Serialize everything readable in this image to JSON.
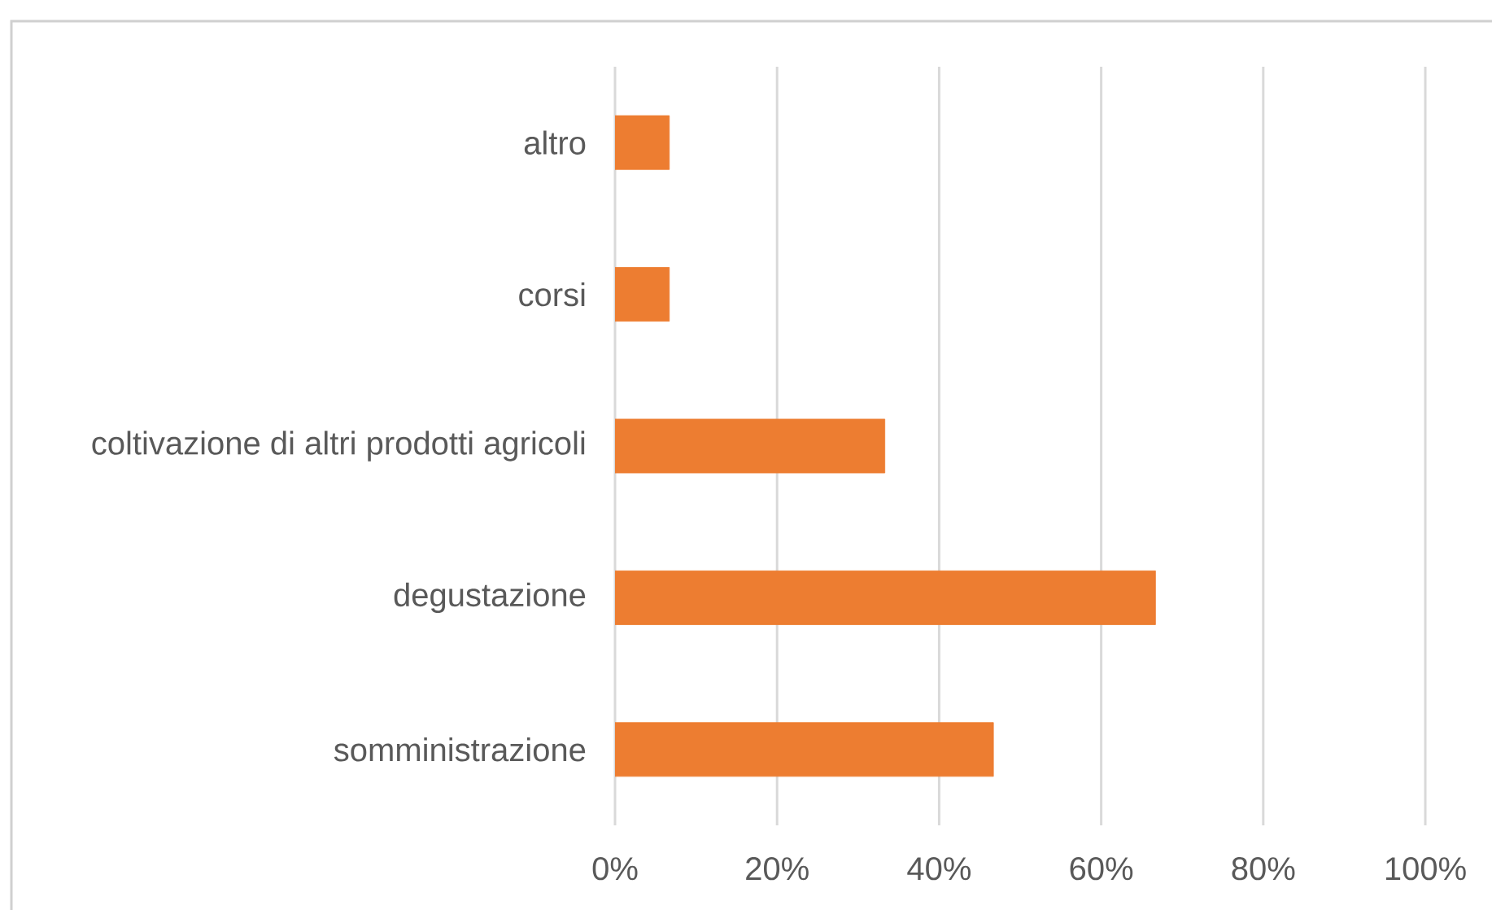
{
  "chart_data": {
    "type": "bar",
    "orientation": "horizontal",
    "categories": [
      "altro",
      "corsi",
      "coltivazione di altri prodotti agricoli",
      "degustazione",
      "somministrazione"
    ],
    "values": [
      6.7,
      6.7,
      33.3,
      66.7,
      46.7
    ],
    "color": "#ed7d31",
    "xlim": [
      0,
      100
    ],
    "xticks": [
      {
        "value": 0,
        "label": "0%"
      },
      {
        "value": 20,
        "label": "20%"
      },
      {
        "value": 40,
        "label": "40%"
      },
      {
        "value": 60,
        "label": "60%"
      },
      {
        "value": 80,
        "label": "80%"
      },
      {
        "value": 100,
        "label": "100%"
      }
    ],
    "grid": "x"
  }
}
